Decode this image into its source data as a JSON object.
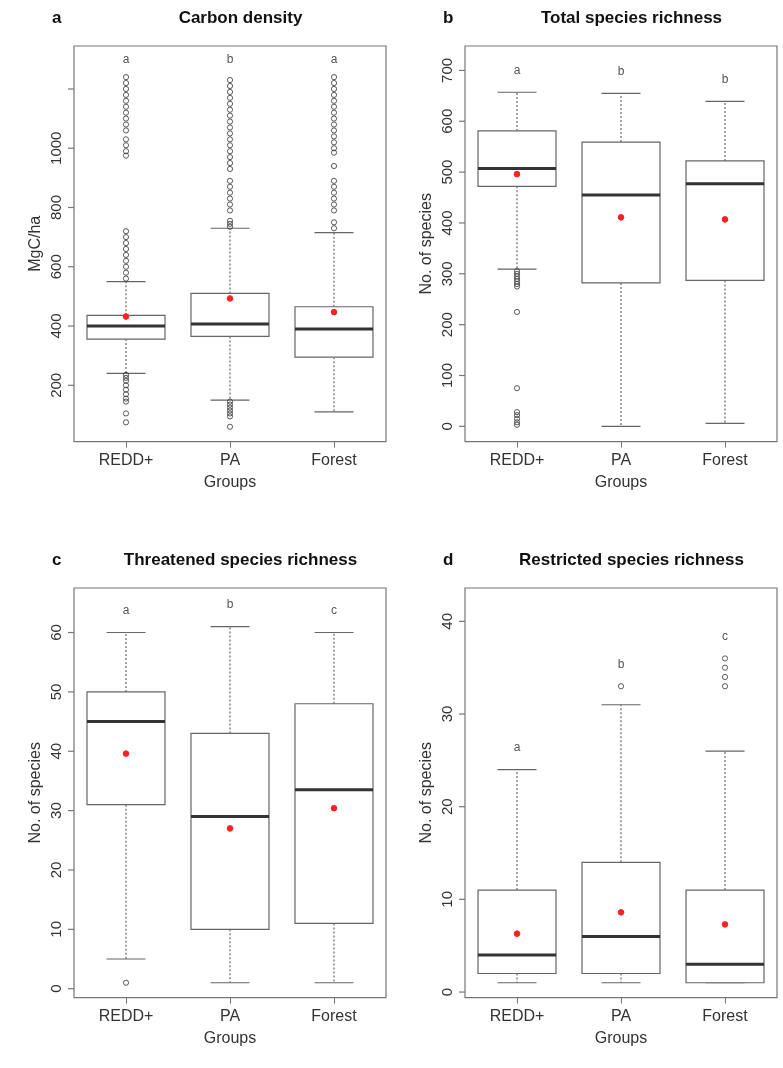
{
  "chart_data": [
    {
      "type": "box",
      "title": "Carbon density",
      "xlabel": "Groups",
      "ylabel": "MgC/ha",
      "categories": [
        "REDD+",
        "PA",
        "Forest"
      ],
      "ylim": [
        10,
        1345
      ],
      "yticks": [
        200,
        400,
        600,
        800,
        1000,
        {
          "value": 1200,
          "label": null
        }
      ],
      "boxes": [
        {
          "low": 240,
          "q1": 356,
          "median": 400,
          "q3": 436,
          "high": 550,
          "mean": 432,
          "outliers": [
            560,
            580,
            600,
            620,
            640,
            660,
            680,
            700,
            720,
            975,
            990,
            1010,
            1030,
            1060,
            1080,
            1100,
            1120,
            1140,
            1160,
            1180,
            1200,
            1220,
            1240,
            235,
            225,
            215,
            200,
            185,
            170,
            155,
            145,
            105,
            75
          ]
        },
        {
          "low": 150,
          "q1": 365,
          "median": 407,
          "q3": 510,
          "high": 730,
          "mean": 493,
          "outliers": [
            735,
            745,
            755,
            790,
            810,
            830,
            850,
            870,
            890,
            930,
            950,
            970,
            990,
            1010,
            1030,
            1050,
            1070,
            1090,
            1110,
            1130,
            1150,
            1170,
            1190,
            1210,
            1230,
            145,
            135,
            125,
            115,
            105,
            95,
            60
          ]
        },
        {
          "low": 110,
          "q1": 295,
          "median": 390,
          "q3": 465,
          "high": 715,
          "mean": 447,
          "outliers": [
            730,
            750,
            790,
            810,
            830,
            850,
            870,
            890,
            940,
            985,
            1000,
            1020,
            1040,
            1060,
            1080,
            1100,
            1120,
            1140,
            1160,
            1180,
            1200,
            1220,
            1240
          ]
        }
      ],
      "annotations": [
        "a",
        "a",
        "b",
        "a"
      ]
    },
    {
      "type": "box",
      "title": "Total species richness",
      "xlabel": "Groups",
      "ylabel": "No. of species",
      "categories": [
        "REDD+",
        "PA",
        "Forest"
      ],
      "ylim": [
        -30,
        748
      ],
      "yticks": [
        0,
        100,
        200,
        300,
        400,
        500,
        600,
        700
      ],
      "boxes": [
        {
          "low": 309,
          "q1": 472,
          "median": 507,
          "q3": 581,
          "high": 657,
          "mean": 496,
          "outliers": [
            305,
            300,
            295,
            290,
            285,
            280,
            275,
            225,
            75,
            28,
            22,
            15,
            8,
            3
          ]
        },
        {
          "low": 0,
          "q1": 282,
          "median": 455,
          "q3": 559,
          "high": 655,
          "mean": 411
        },
        {
          "low": 6,
          "q1": 287,
          "median": 477,
          "q3": 522,
          "high": 639,
          "mean": 407
        }
      ],
      "annotations": [
        "b",
        "a",
        "b",
        "b"
      ]
    },
    {
      "type": "box",
      "title": "Threatened species richness",
      "xlabel": "Groups",
      "ylabel": "No. of species",
      "categories": [
        "REDD+",
        "PA",
        "Forest"
      ],
      "ylim": [
        -1.5,
        67.5
      ],
      "yticks": [
        0,
        10,
        20,
        30,
        40,
        50,
        60
      ],
      "boxes": [
        {
          "low": 5,
          "q1": 31,
          "median": 45,
          "q3": 50,
          "high": 60,
          "mean": 39.6,
          "outliers": [
            1
          ]
        },
        {
          "low": 1,
          "q1": 10,
          "median": 29,
          "q3": 43,
          "high": 61,
          "mean": 27
        },
        {
          "low": 1,
          "q1": 11,
          "median": 33.5,
          "q3": 48,
          "high": 60,
          "mean": 30.4
        }
      ],
      "annotations": [
        "c",
        "a",
        "b",
        "c"
      ]
    },
    {
      "type": "box",
      "title": "Restricted species richness",
      "xlabel": "Groups",
      "ylabel": "No. of species",
      "categories": [
        "REDD+",
        "PA",
        "Forest"
      ],
      "ylim": [
        -0.6,
        43.6
      ],
      "yticks": [
        0,
        10,
        20,
        30,
        40
      ],
      "boxes": [
        {
          "low": 1,
          "q1": 2,
          "median": 4,
          "q3": 11,
          "high": 24,
          "mean": 6.3
        },
        {
          "low": 1,
          "q1": 2,
          "median": 6,
          "q3": 14,
          "high": 31,
          "mean": 8.6,
          "outliers": [
            33
          ]
        },
        {
          "low": 1,
          "q1": 1,
          "median": 3,
          "q3": 11,
          "high": 26,
          "mean": 7.3,
          "outliers": [
            33,
            34,
            35,
            36
          ]
        }
      ],
      "annotations": [
        "d",
        "a",
        "b",
        "c"
      ]
    }
  ]
}
